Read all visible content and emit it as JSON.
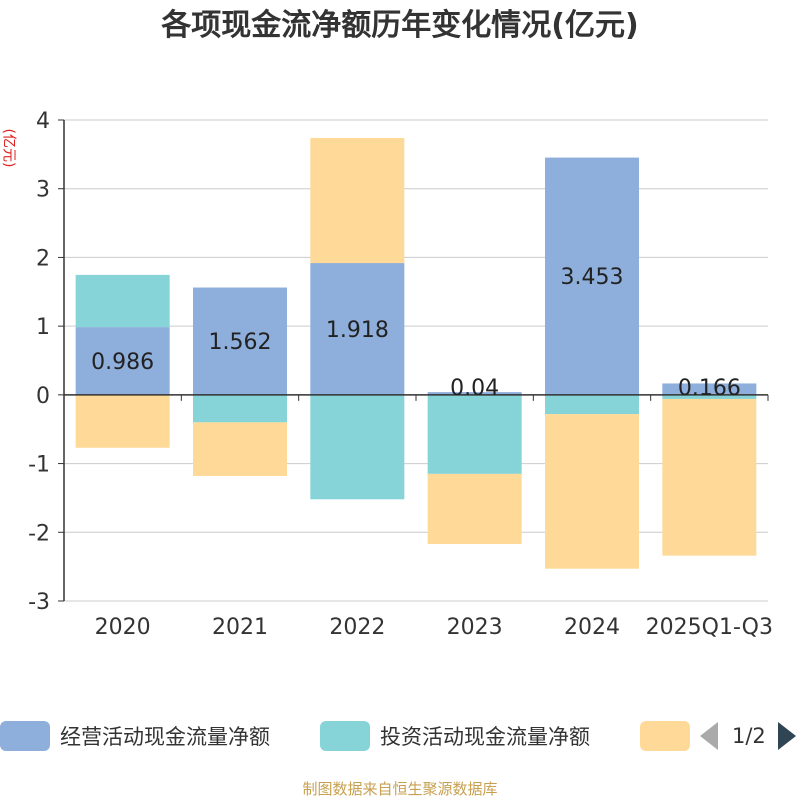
{
  "title": "各项现金流净额历年变化情况(亿元)",
  "y_unit": "(亿元)",
  "source": "制图数据来自恒生聚源数据库",
  "legend": {
    "items": [
      {
        "label": "经营活动现金流量净额",
        "color": "#8eaedb"
      },
      {
        "label": "投资活动现金流量净额",
        "color": "#87d4d8"
      },
      {
        "label": "",
        "color": "#ffd998"
      }
    ],
    "page_text": "1/2"
  },
  "chart_data": {
    "type": "bar",
    "stacked": true,
    "title": "各项现金流净额历年变化情况(亿元)",
    "ylabel": "(亿元)",
    "xlabel": "",
    "ylim": [
      -3,
      4
    ],
    "yticks": [
      "4",
      "3",
      "2",
      "1",
      "0",
      "-1",
      "-2",
      "-3"
    ],
    "categories": [
      "2020",
      "2021",
      "2022",
      "2023",
      "2024",
      "2025Q1-Q3"
    ],
    "series": [
      {
        "name": "经营活动现金流量净额",
        "color": "#8eaedb",
        "values": [
          0.986,
          1.562,
          1.918,
          0.04,
          3.453,
          0.166
        ],
        "labels": [
          "0.986",
          "1.562",
          "1.918",
          "0.04",
          "3.453",
          "0.166"
        ]
      },
      {
        "name": "投资活动现金流量净额",
        "color": "#87d4d8",
        "values": [
          0.76,
          -0.4,
          -1.52,
          -1.15,
          -0.28,
          -0.06
        ]
      },
      {
        "name": "",
        "color": "#ffd998",
        "values": [
          -0.77,
          -0.78,
          1.82,
          -1.02,
          -2.25,
          -2.28
        ]
      }
    ]
  }
}
